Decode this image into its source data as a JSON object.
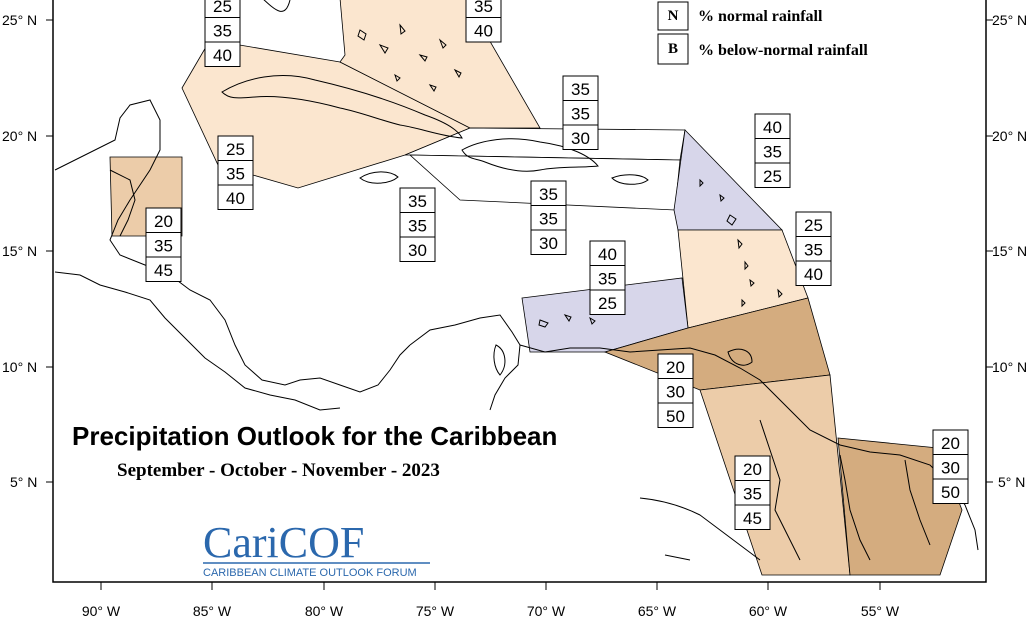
{
  "map": {
    "title": "Precipitation Outlook for the Caribbean",
    "subtitle": "September - October - November - 2023",
    "logo": {
      "text": "CariCOF",
      "tagline": "CARIBBEAN CLIMATE OUTLOOK FORUM",
      "color": "#2b68ad"
    },
    "legend": [
      {
        "key": "N",
        "text": "% normal rainfall"
      },
      {
        "key": "B",
        "text": "% below-normal rainfall"
      }
    ],
    "lat_labels": [
      "25° N",
      "20° N",
      "15° N",
      "10° N",
      "5° N"
    ],
    "lon_labels": [
      "90° W",
      "85° W",
      "80° W",
      "75° W",
      "70° W",
      "65° W",
      "60° W",
      "55° W"
    ],
    "colors": {
      "light_peach": "#fbe6cf",
      "light_tan": "#eccca9",
      "brown": "#d4ac7f",
      "lavender": "#d7d6ea",
      "white": "#ffffff",
      "logo_blue": "#2b68ad"
    },
    "probability_boxes": [
      {
        "id": "bahamas-west",
        "values": [
          "25",
          "35",
          "40"
        ]
      },
      {
        "id": "bahamas-east",
        "values": [
          "35",
          "40"
        ]
      },
      {
        "id": "turks-caicos",
        "values": [
          "35",
          "35",
          "30"
        ]
      },
      {
        "id": "cuba",
        "values": [
          "25",
          "35",
          "40"
        ]
      },
      {
        "id": "belize",
        "values": [
          "20",
          "35",
          "45"
        ]
      },
      {
        "id": "jamaica",
        "values": [
          "35",
          "35",
          "30"
        ]
      },
      {
        "id": "hispaniola",
        "values": [
          "35",
          "35",
          "30"
        ]
      },
      {
        "id": "leeward-islands",
        "values": [
          "40",
          "35",
          "25"
        ]
      },
      {
        "id": "windward-islands",
        "values": [
          "25",
          "35",
          "40"
        ]
      },
      {
        "id": "abc-islands",
        "values": [
          "40",
          "35",
          "25"
        ]
      },
      {
        "id": "trinidad",
        "values": [
          "20",
          "30",
          "50"
        ]
      },
      {
        "id": "guyana",
        "values": [
          "20",
          "35",
          "45"
        ]
      },
      {
        "id": "suriname",
        "values": [
          "20",
          "30",
          "50"
        ]
      }
    ]
  }
}
